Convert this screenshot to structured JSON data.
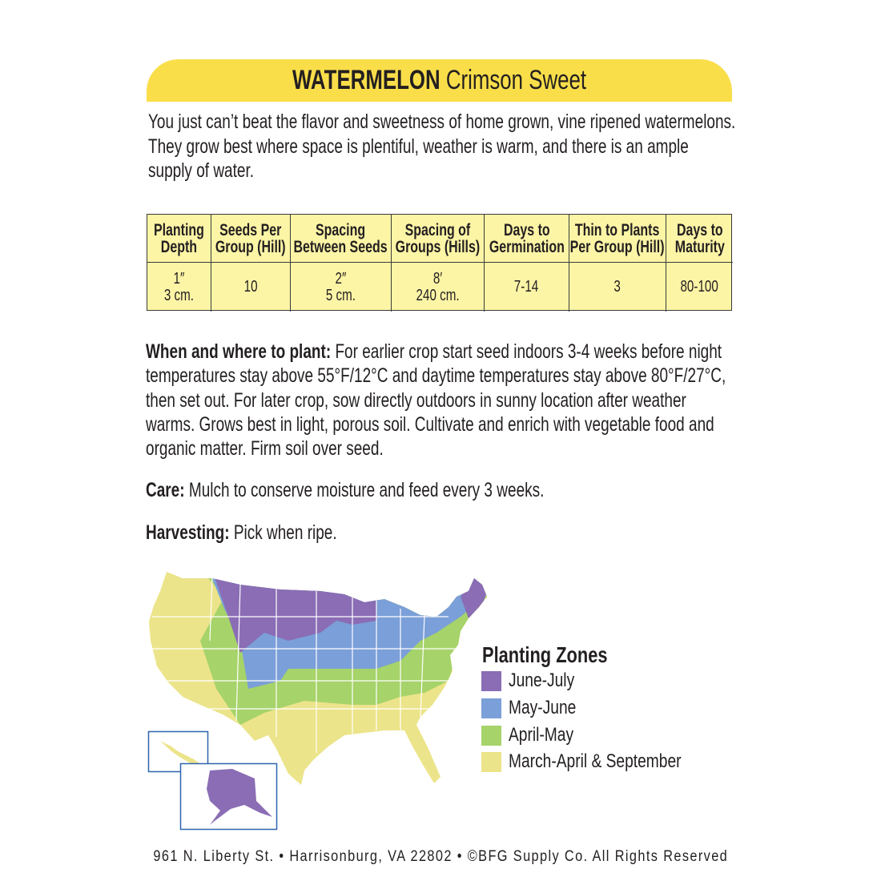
{
  "title": {
    "name": "WATERMELON",
    "variety": "Crimson Sweet"
  },
  "intro": "You just can’t beat the flavor and sweetness of home grown, vine ripened watermelons. They grow best where space is plentiful, weather is warm, and there is an ample supply of water.",
  "table": {
    "headers": [
      "Planting\nDepth",
      "Seeds Per\nGroup (Hill)",
      "Spacing\nBetween Seeds",
      "Spacing of\nGroups (Hills)",
      "Days to\nGermination",
      "Thin to Plants\nPer Group (Hill)",
      "Days to\nMaturity"
    ],
    "values": [
      "1″\n3 cm.",
      "10",
      "2″\n5 cm.",
      "8′\n240 cm.",
      "7-14",
      "3",
      "80-100"
    ]
  },
  "when": {
    "label": "When and where to plant:",
    "text": "For earlier crop start seed indoors 3-4 weeks before night temperatures stay above 55°F/12°C and daytime temperatures stay above 80°F/27°C, then set out. For later crop, sow directly outdoors in sunny location after weather warms. Grows best in light, porous soil. Cultivate and enrich with vegetable food and organic matter. Firm soil over seed."
  },
  "care": {
    "label": "Care:",
    "text": "Mulch to conserve moisture and feed every 3 weeks."
  },
  "harvesting": {
    "label": "Harvesting:",
    "text": "Pick when ripe."
  },
  "legend": {
    "title": "Planting Zones",
    "items": [
      {
        "label": "June-July",
        "color": "#8a6db5"
      },
      {
        "label": "May-June",
        "color": "#7b9fd8"
      },
      {
        "label": "April-May",
        "color": "#a6d36a"
      },
      {
        "label": "March-April & September",
        "color": "#ece48a"
      }
    ]
  },
  "footer": "961 N. Liberty St. • Harrisonburg, VA 22802 • ©BFG Supply Co. All Rights Reserved"
}
